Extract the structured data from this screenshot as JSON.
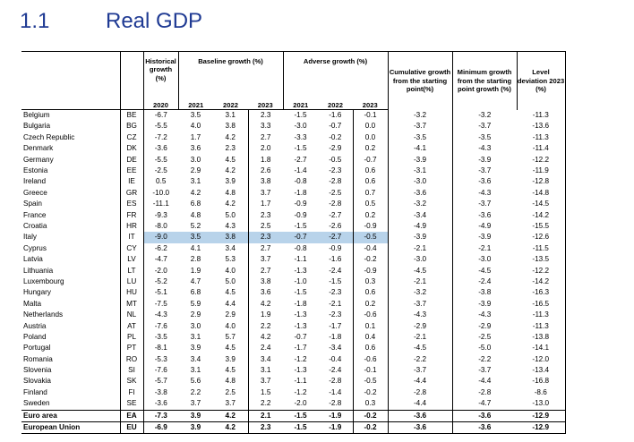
{
  "section": {
    "number": "1.1",
    "title": "Real GDP"
  },
  "headers": {
    "historical": "Historical growth (%)",
    "baseline": "Baseline growth (%)",
    "adverse": "Adverse growth (%)",
    "cumulative": "Cumulative growth from the starting point(%)",
    "minimum": "Minimum growth from the starting point growth (%)",
    "level": "Level deviation 2023 (%)",
    "years": [
      "2020",
      "2021",
      "2022",
      "2023",
      "2021",
      "2022",
      "2023"
    ]
  },
  "rows": [
    {
      "name": "Belgium",
      "code": "BE",
      "v": [
        "-6.7",
        "3.5",
        "3.1",
        "2.3",
        "-1.5",
        "-1.6",
        "-0.1",
        "-3.2",
        "-3.2",
        "-11.3"
      ]
    },
    {
      "name": "Bulgaria",
      "code": "BG",
      "v": [
        "-5.5",
        "4.0",
        "3.8",
        "3.3",
        "-3.0",
        "-0.7",
        "0.0",
        "-3.7",
        "-3.7",
        "-13.6"
      ]
    },
    {
      "name": "Czech Republic",
      "code": "CZ",
      "v": [
        "-7.2",
        "1.7",
        "4.2",
        "2.7",
        "-3.3",
        "-0.2",
        "0.0",
        "-3.5",
        "-3.5",
        "-11.3"
      ]
    },
    {
      "name": "Denmark",
      "code": "DK",
      "v": [
        "-3.6",
        "3.6",
        "2.3",
        "2.0",
        "-1.5",
        "-2.9",
        "0.2",
        "-4.1",
        "-4.3",
        "-11.4"
      ]
    },
    {
      "name": "Germany",
      "code": "DE",
      "v": [
        "-5.5",
        "3.0",
        "4.5",
        "1.8",
        "-2.7",
        "-0.5",
        "-0.7",
        "-3.9",
        "-3.9",
        "-12.2"
      ]
    },
    {
      "name": "Estonia",
      "code": "EE",
      "v": [
        "-2.5",
        "2.9",
        "4.2",
        "2.6",
        "-1.4",
        "-2.3",
        "0.6",
        "-3.1",
        "-3.7",
        "-11.9"
      ]
    },
    {
      "name": "Ireland",
      "code": "IE",
      "v": [
        "0.5",
        "3.1",
        "3.9",
        "3.8",
        "-0.8",
        "-2.8",
        "0.6",
        "-3.0",
        "-3.6",
        "-12.8"
      ]
    },
    {
      "name": "Greece",
      "code": "GR",
      "v": [
        "-10.0",
        "4.2",
        "4.8",
        "3.7",
        "-1.8",
        "-2.5",
        "0.7",
        "-3.6",
        "-4.3",
        "-14.8"
      ]
    },
    {
      "name": "Spain",
      "code": "ES",
      "v": [
        "-11.1",
        "6.8",
        "4.2",
        "1.7",
        "-0.9",
        "-2.8",
        "0.5",
        "-3.2",
        "-3.7",
        "-14.5"
      ]
    },
    {
      "name": "France",
      "code": "FR",
      "v": [
        "-9.3",
        "4.8",
        "5.0",
        "2.3",
        "-0.9",
        "-2.7",
        "0.2",
        "-3.4",
        "-3.6",
        "-14.2"
      ]
    },
    {
      "name": "Croatia",
      "code": "HR",
      "v": [
        "-8.0",
        "5.2",
        "4.3",
        "2.5",
        "-1.5",
        "-2.6",
        "-0.9",
        "-4.9",
        "-4.9",
        "-15.5"
      ]
    },
    {
      "name": "Italy",
      "code": "IT",
      "v": [
        "-9.0",
        "3.5",
        "3.8",
        "2.3",
        "-0.7",
        "-2.7",
        "-0.5",
        "-3.9",
        "-3.9",
        "-12.6"
      ],
      "highlight": true
    },
    {
      "name": "Cyprus",
      "code": "CY",
      "v": [
        "-6.2",
        "4.1",
        "3.4",
        "2.7",
        "-0.8",
        "-0.9",
        "-0.4",
        "-2.1",
        "-2.1",
        "-11.5"
      ]
    },
    {
      "name": "Latvia",
      "code": "LV",
      "v": [
        "-4.7",
        "2.8",
        "5.3",
        "3.7",
        "-1.1",
        "-1.6",
        "-0.2",
        "-3.0",
        "-3.0",
        "-13.5"
      ]
    },
    {
      "name": "Lithuania",
      "code": "LT",
      "v": [
        "-2.0",
        "1.9",
        "4.0",
        "2.7",
        "-1.3",
        "-2.4",
        "-0.9",
        "-4.5",
        "-4.5",
        "-12.2"
      ]
    },
    {
      "name": "Luxembourg",
      "code": "LU",
      "v": [
        "-5.2",
        "4.7",
        "5.0",
        "3.8",
        "-1.0",
        "-1.5",
        "0.3",
        "-2.1",
        "-2.4",
        "-14.2"
      ]
    },
    {
      "name": "Hungary",
      "code": "HU",
      "v": [
        "-5.1",
        "6.8",
        "4.5",
        "3.6",
        "-1.5",
        "-2.3",
        "0.6",
        "-3.2",
        "-3.8",
        "-16.3"
      ]
    },
    {
      "name": "Malta",
      "code": "MT",
      "v": [
        "-7.5",
        "5.9",
        "4.4",
        "4.2",
        "-1.8",
        "-2.1",
        "0.2",
        "-3.7",
        "-3.9",
        "-16.5"
      ]
    },
    {
      "name": "Netherlands",
      "code": "NL",
      "v": [
        "-4.3",
        "2.9",
        "2.9",
        "1.9",
        "-1.3",
        "-2.3",
        "-0.6",
        "-4.3",
        "-4.3",
        "-11.3"
      ]
    },
    {
      "name": "Austria",
      "code": "AT",
      "v": [
        "-7.6",
        "3.0",
        "4.0",
        "2.2",
        "-1.3",
        "-1.7",
        "0.1",
        "-2.9",
        "-2.9",
        "-11.3"
      ]
    },
    {
      "name": "Poland",
      "code": "PL",
      "v": [
        "-3.5",
        "3.1",
        "5.7",
        "4.2",
        "-0.7",
        "-1.8",
        "0.4",
        "-2.1",
        "-2.5",
        "-13.8"
      ]
    },
    {
      "name": "Portugal",
      "code": "PT",
      "v": [
        "-8.1",
        "3.9",
        "4.5",
        "2.4",
        "-1.7",
        "-3.4",
        "0.6",
        "-4.5",
        "-5.0",
        "-14.1"
      ]
    },
    {
      "name": "Romania",
      "code": "RO",
      "v": [
        "-5.3",
        "3.4",
        "3.9",
        "3.4",
        "-1.2",
        "-0.4",
        "-0.6",
        "-2.2",
        "-2.2",
        "-12.0"
      ]
    },
    {
      "name": "Slovenia",
      "code": "SI",
      "v": [
        "-7.6",
        "3.1",
        "4.5",
        "3.1",
        "-1.3",
        "-2.4",
        "-0.1",
        "-3.7",
        "-3.7",
        "-13.4"
      ]
    },
    {
      "name": "Slovakia",
      "code": "SK",
      "v": [
        "-5.7",
        "5.6",
        "4.8",
        "3.7",
        "-1.1",
        "-2.8",
        "-0.5",
        "-4.4",
        "-4.4",
        "-16.8"
      ]
    },
    {
      "name": "Finland",
      "code": "FI",
      "v": [
        "-3.8",
        "2.2",
        "2.5",
        "1.5",
        "-1.2",
        "-1.4",
        "-0.2",
        "-2.8",
        "-2.8",
        "-8.6"
      ]
    },
    {
      "name": "Sweden",
      "code": "SE",
      "v": [
        "-3.6",
        "3.7",
        "3.7",
        "2.2",
        "-2.0",
        "-2.8",
        "0.3",
        "-4.4",
        "-4.7",
        "-13.0"
      ]
    },
    {
      "name": "Euro area",
      "code": "EA",
      "v": [
        "-7.3",
        "3.9",
        "4.2",
        "2.1",
        "-1.5",
        "-1.9",
        "-0.2",
        "-3.6",
        "-3.6",
        "-12.9"
      ],
      "bold": true
    },
    {
      "name": "European Union",
      "code": "EU",
      "v": [
        "-6.9",
        "3.9",
        "4.2",
        "2.3",
        "-1.5",
        "-1.9",
        "-0.2",
        "-3.6",
        "-3.6",
        "-12.9"
      ],
      "bold": true
    }
  ],
  "colors": {
    "heading": "#1f3a93",
    "highlight": "#b8d3ea"
  }
}
